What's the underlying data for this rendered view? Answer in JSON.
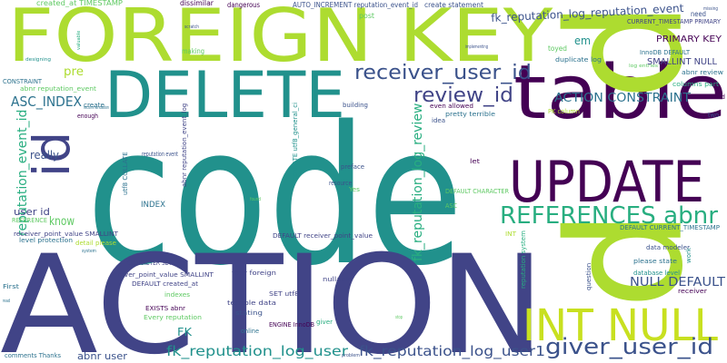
{
  "palette": {
    "dark_purple": "#440154",
    "indigo": "#3b528b",
    "slate_blue": "#414487",
    "blue_teal": "#2c728e",
    "teal": "#21918c",
    "green_teal": "#28ae80",
    "green": "#5ec962",
    "lime": "#addc30",
    "yellow_lime": "#c8e020"
  },
  "words": [
    {
      "text": "code",
      "color": "#21918c"
    },
    {
      "text": "ACTION",
      "color": "#414487"
    },
    {
      "text": "FOREIGN KEY",
      "color": "#addc30"
    },
    {
      "text": "table",
      "color": "#440154"
    },
    {
      "text": "DELETE",
      "color": "#21918c"
    },
    {
      "text": "UPDATE",
      "color": "#440154"
    },
    {
      "text": "p",
      "color": "#addc30"
    },
    {
      "text": "p",
      "color": "#addc30"
    },
    {
      "text": "id",
      "color": "#414487"
    },
    {
      "text": "INT NULL",
      "color": "#c8e020"
    },
    {
      "text": "REFERENCES abnr",
      "color": "#28ae80"
    },
    {
      "text": "giver_user_id",
      "color": "#3b528b"
    },
    {
      "text": "receiver_user_id",
      "color": "#3b528b"
    },
    {
      "text": "review_id",
      "color": "#414487"
    },
    {
      "text": "ASC_INDEX",
      "color": "#2c728e"
    },
    {
      "text": "fk_reputation_log_user",
      "color": "#21918c"
    },
    {
      "text": "fk_reputation_log_user1",
      "color": "#3b528b"
    },
    {
      "text": "ACTION CONSTRAINT",
      "color": "#2c728e"
    },
    {
      "text": "NULL DEFAULT",
      "color": "#3b528b"
    },
    {
      "text": "fk_reputation_log_reputation_event",
      "color": "#3b528b"
    },
    {
      "text": "fk_reputation_log_review",
      "color": "#28ae80"
    },
    {
      "text": "reputation_event_id",
      "color": "#28ae80"
    },
    {
      "text": "PRIMARY KEY",
      "color": "#440154"
    },
    {
      "text": "abnr user",
      "color": "#3b528b"
    },
    {
      "text": "really",
      "color": "#3b528b"
    },
    {
      "text": "pre",
      "color": "#addc30"
    },
    {
      "text": "know",
      "color": "#5ec962"
    },
    {
      "text": "user id",
      "color": "#414487"
    },
    {
      "text": "em",
      "color": "#21918c"
    },
    {
      "text": "SMALLINT NULL",
      "color": "#414487"
    },
    {
      "text": "FK",
      "color": "#21918c"
    },
    {
      "text": "INDEX",
      "color": "#2c728e"
    },
    {
      "text": "created_at TIMESTAMP",
      "color": "#5ec962"
    },
    {
      "text": "AUTO_INCREMENT reputation_event_id",
      "color": "#3b528b"
    },
    {
      "text": "create statement",
      "color": "#3b528b"
    },
    {
      "text": "dissimilar",
      "color": "#440154"
    },
    {
      "text": "dangerous",
      "color": "#440154"
    },
    {
      "text": "making",
      "color": "#5ec962"
    },
    {
      "text": "post",
      "color": "#5ec962"
    },
    {
      "text": "need",
      "color": "#3b528b"
    },
    {
      "text": "toyed",
      "color": "#5ec962"
    },
    {
      "text": "CURRENT_TIMESTAMP PRIMARY",
      "color": "#414487"
    },
    {
      "text": "InnoDB DEFAULT",
      "color": "#2c728e"
    },
    {
      "text": "duplicate log",
      "color": "#2c728e"
    },
    {
      "text": "abnr review",
      "color": "#2c728e"
    },
    {
      "text": "columns part",
      "color": "#28ae80"
    },
    {
      "text": "concerned",
      "color": "#440154"
    },
    {
      "text": "CONSTRAINT",
      "color": "#2c728e"
    },
    {
      "text": "abnr reputation_event",
      "color": "#5ec962"
    },
    {
      "text": "REFERENCE",
      "color": "#5ec962"
    },
    {
      "text": "create",
      "color": "#2c728e"
    },
    {
      "text": "enough",
      "color": "#440154"
    },
    {
      "text": "building",
      "color": "#3b528b"
    },
    {
      "text": "even allowed",
      "color": "#440154"
    },
    {
      "text": "pretty terrible",
      "color": "#2c728e"
    },
    {
      "text": "idea",
      "color": "#3b528b"
    },
    {
      "text": "PK column",
      "color": "#addc30"
    },
    {
      "text": "two",
      "color": "#3b528b"
    },
    {
      "text": "reputation event",
      "color": "#3b528b"
    },
    {
      "text": "let",
      "color": "#440154"
    },
    {
      "text": "preface",
      "color": "#3b528b"
    },
    {
      "text": "resource",
      "color": "#3b528b"
    },
    {
      "text": "Yes",
      "color": "#5ec962"
    },
    {
      "text": "DEFAULT CHARACTER",
      "color": "#5ec962"
    },
    {
      "text": "ASC",
      "color": "#5ec962"
    },
    {
      "text": "utf8 COLLATE",
      "color": "#2c728e"
    },
    {
      "text": "COLLATE utf8_general_ci",
      "color": "#21918c"
    },
    {
      "text": "abnr reputation_event_log",
      "color": "#414487"
    },
    {
      "text": "level protection",
      "color": "#2c728e"
    },
    {
      "text": "receiver_point_value SMALLINT",
      "color": "#414487"
    },
    {
      "text": "detail please",
      "color": "#addc30"
    },
    {
      "text": "DEFAULT receiver_point_value",
      "color": "#414487"
    },
    {
      "text": "giver_point_value SMALLINT",
      "color": "#414487"
    },
    {
      "text": "CHARACTER SET",
      "color": "#414487"
    },
    {
      "text": "DEFAULT created_at",
      "color": "#414487"
    },
    {
      "text": "four foreign",
      "color": "#414487"
    },
    {
      "text": "nullable",
      "color": "#414487"
    },
    {
      "text": "SET utf8",
      "color": "#414487"
    },
    {
      "text": "indexes",
      "color": "#5ec962"
    },
    {
      "text": "EXISTS abnr",
      "color": "#440154"
    },
    {
      "text": "Every reputation",
      "color": "#5ec962"
    },
    {
      "text": "terrible data",
      "color": "#414487"
    },
    {
      "text": "stating",
      "color": "#3b528b"
    },
    {
      "text": "ENGINE InnoDB",
      "color": "#440154"
    },
    {
      "text": "giver",
      "color": "#28ae80"
    },
    {
      "text": "online",
      "color": "#2c728e"
    },
    {
      "text": "First",
      "color": "#2c728e"
    },
    {
      "text": "comments Thanks",
      "color": "#2c728e"
    },
    {
      "text": "INT",
      "color": "#addc30"
    },
    {
      "text": "reputation system",
      "color": "#28ae80"
    },
    {
      "text": "question",
      "color": "#3b528b"
    },
    {
      "text": "data modeler",
      "color": "#3b528b"
    },
    {
      "text": "please state",
      "color": "#2c728e"
    },
    {
      "text": "database level",
      "color": "#21918c"
    },
    {
      "text": "work",
      "color": "#21918c"
    },
    {
      "text": "receiver",
      "color": "#440154"
    },
    {
      "text": "DEFAULT CURRENT_TIMESTAMP",
      "color": "#2c728e"
    },
    {
      "text": "valuable",
      "color": "#28ae80"
    },
    {
      "text": "designing",
      "color": "#21918c"
    },
    {
      "text": "implementing",
      "color": "#3b528b"
    },
    {
      "text": "log entries",
      "color": "#5ec962"
    },
    {
      "text": "scratch",
      "color": "#3b528b"
    },
    {
      "text": "recommendation",
      "color": "#2c728e"
    },
    {
      "text": "read",
      "color": "#2c728e"
    },
    {
      "text": "stop",
      "color": "#5ec962"
    },
    {
      "text": "problem",
      "color": "#3b528b"
    },
    {
      "text": "system",
      "color": "#2c728e"
    },
    {
      "text": "found",
      "color": "#5ec962"
    },
    {
      "text": "missing",
      "color": "#3b528b"
    }
  ]
}
